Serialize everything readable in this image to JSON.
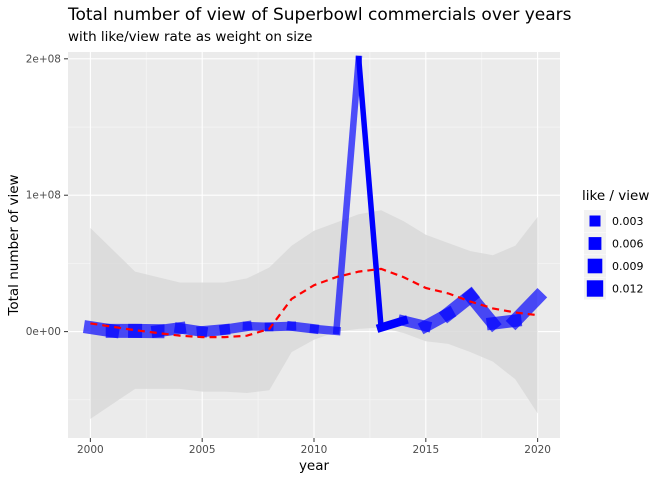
{
  "chart_data": {
    "type": "line",
    "title": "Total number of view of Superbowl commercials over years",
    "subtitle": "with like/view rate as weight on size",
    "xlabel": "year",
    "ylabel": "Total number of view",
    "xlim": [
      1999.0,
      2021.0
    ],
    "ylim": [
      -78000000,
      205000000
    ],
    "x_ticks": [
      2000,
      2005,
      2010,
      2015,
      2020
    ],
    "x_tick_labels": [
      "2000",
      "2005",
      "2010",
      "2015",
      "2020"
    ],
    "y_ticks": [
      0,
      100000000,
      200000000
    ],
    "y_tick_labels": [
      "0e+00",
      "1e+08",
      "2e+08"
    ],
    "grid": true,
    "legend_position": "right",
    "legend": {
      "title": "like / view",
      "labels": [
        "0.003",
        "0.006",
        "0.009",
        "0.012"
      ],
      "values": [
        0.003,
        0.006,
        0.009,
        0.012
      ]
    },
    "line_color": "#0000ff",
    "smooth_color": "#ff0000",
    "band_color": "#d9d9d9",
    "series": [
      {
        "x": [
          2000,
          2001,
          2002,
          2003,
          2004,
          2005,
          2006,
          2007,
          2008,
          2009,
          2010,
          2011,
          2012,
          2013,
          2014,
          2015,
          2016,
          2017,
          2018,
          2019,
          2020
        ],
        "values": [
          3000000,
          500000,
          500000,
          300000,
          2500000,
          0,
          1500000,
          4000000,
          3500000,
          4000000,
          2000000,
          500000,
          200000000,
          3000000,
          8000000,
          4000000,
          13000000,
          26000000,
          6000000,
          8000000,
          25000000
        ],
        "size": [
          0.01,
          0.012,
          0.012,
          0.012,
          0.008,
          0.009,
          0.009,
          0.007,
          0.006,
          0.008,
          0.007,
          0.006,
          0.003,
          0.004,
          0.009,
          0.008,
          0.012,
          0.011,
          0.01,
          0.011,
          0.012
        ]
      }
    ],
    "smooth": {
      "x": [
        2000,
        2002,
        2004,
        2005,
        2006,
        2007,
        2008,
        2009,
        2010,
        2011,
        2012,
        2013,
        2014,
        2015,
        2016,
        2017,
        2018,
        2019,
        2020
      ],
      "y": [
        6000000,
        1000000,
        -3000000,
        -4000000,
        -4000000,
        -3000000,
        2000000,
        24000000,
        34000000,
        40000000,
        44000000,
        46000000,
        40000000,
        32000000,
        28000000,
        22000000,
        17000000,
        14000000,
        12000000
      ],
      "upper": [
        76000000,
        44000000,
        36000000,
        36000000,
        36000000,
        39000000,
        47000000,
        63000000,
        74000000,
        80000000,
        86000000,
        89000000,
        81000000,
        71000000,
        65000000,
        59000000,
        56000000,
        63000000,
        84000000
      ],
      "lower": [
        -64000000,
        -42000000,
        -42000000,
        -44000000,
        -44000000,
        -45000000,
        -43000000,
        -15000000,
        -6000000,
        0,
        2000000,
        3000000,
        -1000000,
        -7000000,
        -9000000,
        -15000000,
        -22000000,
        -35000000,
        -60000000
      ]
    }
  }
}
